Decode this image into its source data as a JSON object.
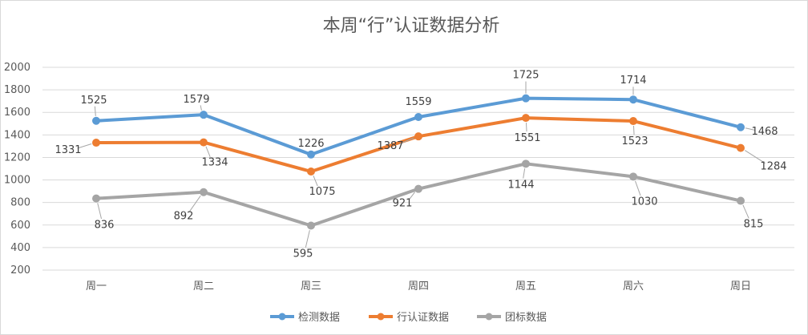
{
  "chart_data": {
    "type": "line",
    "title": "本周“行”认证数据分析",
    "xlabel": "",
    "ylabel": "",
    "categories": [
      "周一",
      "周二",
      "周三",
      "周四",
      "周五",
      "周六",
      "周日"
    ],
    "ylim": [
      200,
      2000
    ],
    "yticks": [
      200,
      400,
      600,
      800,
      1000,
      1200,
      1400,
      1600,
      1800,
      2000
    ],
    "grid": true,
    "legend_position": "bottom",
    "series": [
      {
        "name": "检测数据",
        "color": "#5B9BD5",
        "values": [
          1525,
          1579,
          1226,
          1559,
          1725,
          1714,
          1468
        ]
      },
      {
        "name": "行认证数据",
        "color": "#ED7D31",
        "values": [
          1331,
          1334,
          1075,
          1387,
          1551,
          1523,
          1284
        ]
      },
      {
        "name": "团标数据",
        "color": "#A5A5A5",
        "values": [
          836,
          892,
          595,
          921,
          1144,
          1030,
          815
        ]
      }
    ]
  }
}
